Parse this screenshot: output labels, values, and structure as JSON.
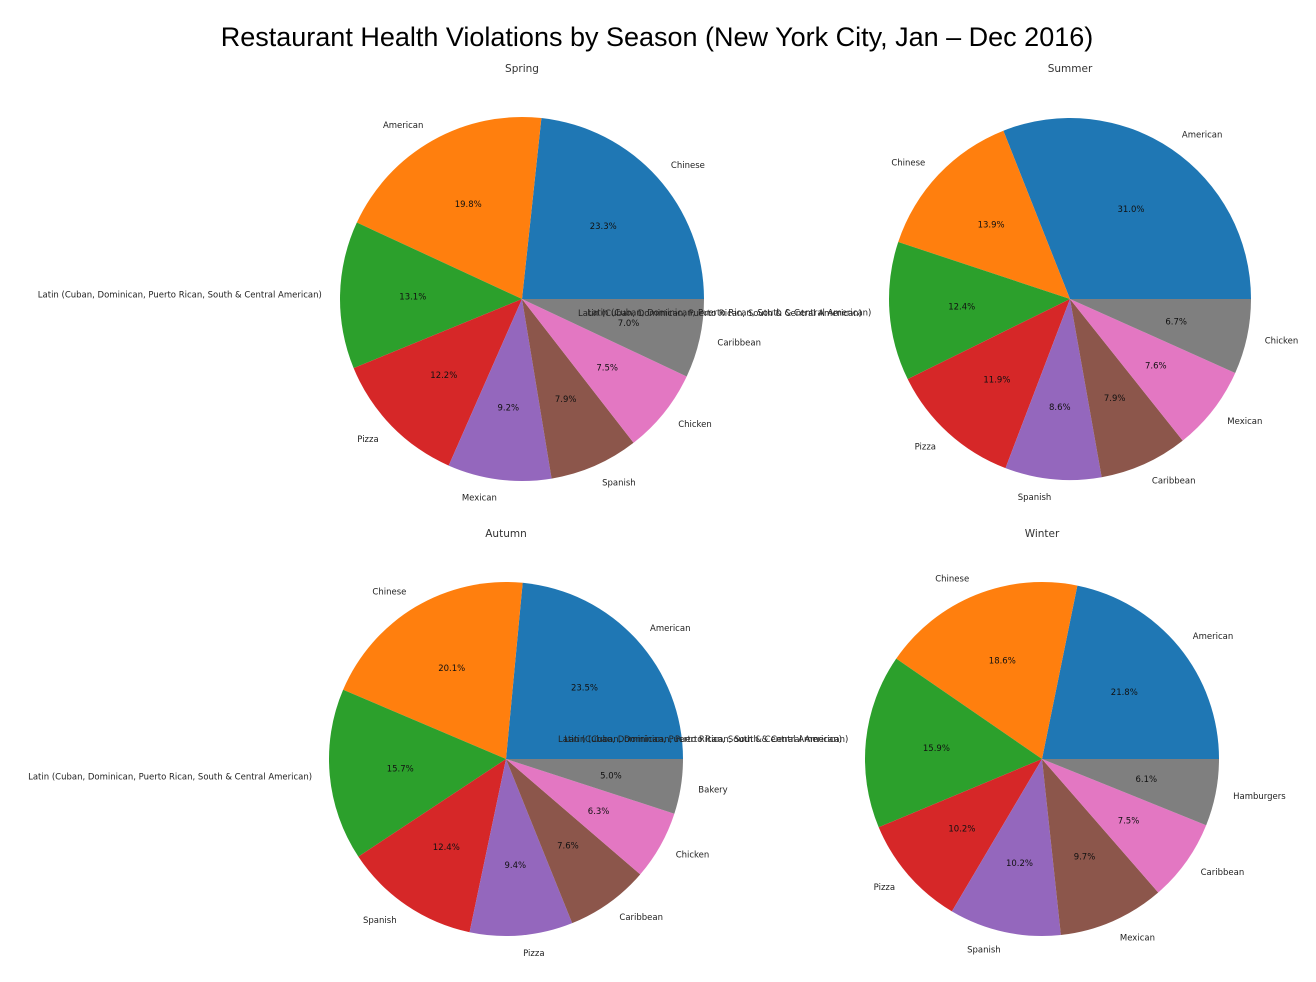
{
  "title": "Restaurant Health Violations by Season (New York City, Jan – Dec 2016)",
  "colors": [
    "#1f77b4",
    "#ff7f0e",
    "#2ca02c",
    "#d62728",
    "#9467bd",
    "#8c564b",
    "#e377c2",
    "#7f7f7f"
  ],
  "chart_data": [
    {
      "type": "pie",
      "title": "Spring",
      "categories": [
        "Chinese",
        "American",
        "Latin (Cuban, Dominican, Puerto Rican, South & Central American)",
        "Pizza",
        "Mexican",
        "Spanish",
        "Chicken",
        "Caribbean"
      ],
      "values": [
        23.3,
        19.8,
        13.1,
        12.2,
        9.2,
        7.9,
        7.5,
        7.0
      ],
      "labels": [
        "23.3%",
        "19.8%",
        "13.1%",
        "12.2%",
        "9.2%",
        "7.9%",
        "7.5%",
        "7.0%"
      ],
      "annotations": [
        "Latin (Cuban, Dominican, Puerto Rican, South & Central American)"
      ]
    },
    {
      "type": "pie",
      "title": "Summer",
      "categories": [
        "American",
        "Chinese",
        "Latin (Cuban, Dominican, Puerto Rican, South & Central American)",
        "Pizza",
        "Spanish",
        "Caribbean",
        "Mexican",
        "Chicken"
      ],
      "values": [
        31.0,
        13.9,
        12.4,
        11.9,
        8.6,
        7.9,
        7.6,
        6.7
      ],
      "labels": [
        "31.0%",
        "13.9%",
        "12.4%",
        "11.9%",
        "8.6%",
        "7.9%",
        "7.6%",
        "6.7%"
      ],
      "annotations": []
    },
    {
      "type": "pie",
      "title": "Autumn",
      "categories": [
        "American",
        "Chinese",
        "Latin (Cuban, Dominican, Puerto Rican, South & Central American)",
        "Spanish",
        "Pizza",
        "Caribbean",
        "Chicken",
        "Bakery"
      ],
      "values": [
        23.5,
        20.1,
        15.7,
        12.4,
        9.4,
        7.6,
        6.3,
        5.0
      ],
      "labels": [
        "23.5%",
        "20.1%",
        "15.7%",
        "12.4%",
        "9.4%",
        "7.6%",
        "6.3%",
        "5.0%"
      ],
      "annotations": [
        "Latin (Cuban, Dominican, Puerto Rican, South & Central American)"
      ]
    },
    {
      "type": "pie",
      "title": "Winter",
      "categories": [
        "American",
        "Chinese",
        "Latin (Cuban, Dominican, Puerto Rican, South & Central American)",
        "Pizza",
        "Spanish",
        "Mexican",
        "Caribbean",
        "Hamburgers"
      ],
      "values": [
        21.8,
        18.6,
        15.9,
        10.2,
        10.2,
        9.7,
        7.5,
        6.1
      ],
      "labels": [
        "21.8%",
        "18.6%",
        "15.9%",
        "10.2%",
        "10.2%",
        "9.7%",
        "7.5%",
        "6.1%"
      ],
      "annotations": []
    }
  ]
}
